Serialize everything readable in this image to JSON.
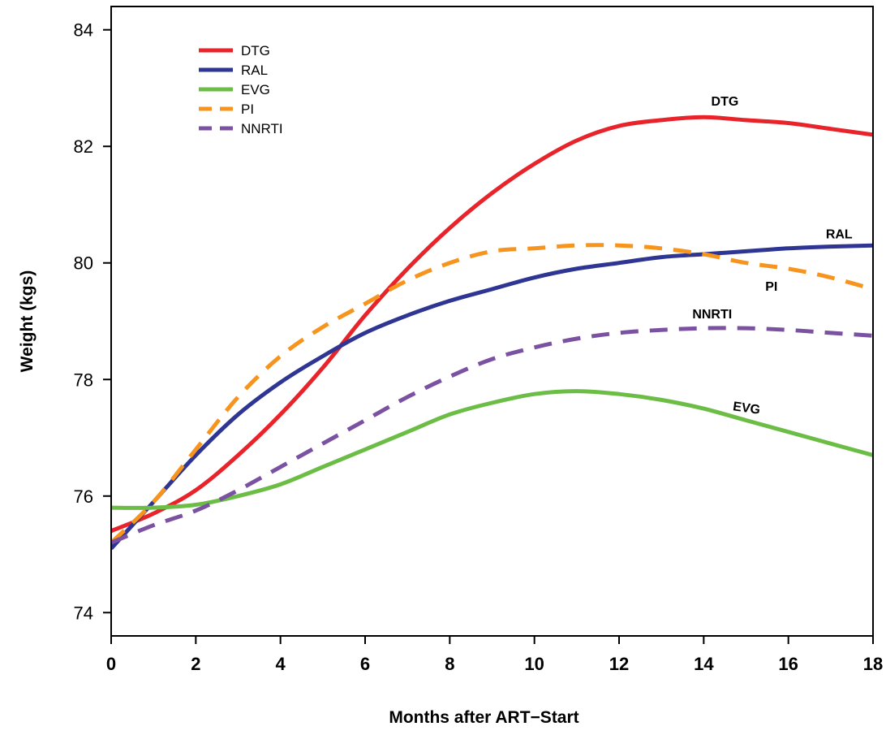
{
  "chart_data": {
    "type": "line",
    "title": "",
    "xlabel": "Months after ART−Start",
    "ylabel": "Weight (kgs)",
    "xlim": [
      0,
      18
    ],
    "ylim": [
      73.6,
      84.4
    ],
    "x_ticks": [
      0,
      2,
      4,
      6,
      8,
      10,
      12,
      14,
      16,
      18
    ],
    "y_ticks": [
      74,
      76,
      78,
      80,
      82,
      84
    ],
    "grid": false,
    "legend_position": "top-left",
    "series": [
      {
        "name": "DTG",
        "color": "#e8232a",
        "dash": "solid",
        "curve_label": "DTG",
        "x": [
          0,
          1,
          2,
          3,
          4,
          5,
          6,
          7,
          8,
          9,
          10,
          11,
          12,
          13,
          14,
          15,
          16,
          17,
          18
        ],
        "y": [
          75.4,
          75.7,
          76.1,
          76.7,
          77.4,
          78.2,
          79.1,
          79.9,
          80.6,
          81.2,
          81.7,
          82.1,
          82.35,
          82.45,
          82.5,
          82.45,
          82.4,
          82.3,
          82.2
        ]
      },
      {
        "name": "RAL",
        "color": "#2e3592",
        "dash": "solid",
        "curve_label": "RAL",
        "x": [
          0,
          1,
          2,
          3,
          4,
          5,
          6,
          7,
          8,
          9,
          10,
          11,
          12,
          13,
          14,
          15,
          16,
          17,
          18
        ],
        "y": [
          75.1,
          75.9,
          76.7,
          77.4,
          77.95,
          78.4,
          78.8,
          79.1,
          79.35,
          79.55,
          79.75,
          79.9,
          80.0,
          80.1,
          80.15,
          80.2,
          80.25,
          80.28,
          80.3
        ]
      },
      {
        "name": "EVG",
        "color": "#6cbd45",
        "dash": "solid",
        "curve_label": "EVG",
        "x": [
          0,
          1,
          2,
          3,
          4,
          5,
          6,
          7,
          8,
          9,
          10,
          11,
          12,
          13,
          14,
          15,
          16,
          17,
          18
        ],
        "y": [
          75.8,
          75.8,
          75.85,
          76.0,
          76.2,
          76.5,
          76.8,
          77.1,
          77.4,
          77.6,
          77.75,
          77.8,
          77.75,
          77.65,
          77.5,
          77.3,
          77.1,
          76.9,
          76.7
        ]
      },
      {
        "name": "PI",
        "color": "#f7941d",
        "dash": "dashed",
        "curve_label": "PI",
        "x": [
          0,
          1,
          2,
          3,
          4,
          5,
          6,
          7,
          8,
          9,
          10,
          11,
          12,
          13,
          14,
          15,
          16,
          17,
          18
        ],
        "y": [
          75.2,
          75.9,
          76.8,
          77.7,
          78.4,
          78.9,
          79.3,
          79.7,
          80.0,
          80.2,
          80.25,
          80.3,
          80.3,
          80.25,
          80.15,
          80.0,
          79.9,
          79.75,
          79.55
        ]
      },
      {
        "name": "NNRTI",
        "color": "#7b52a1",
        "dash": "dashed",
        "curve_label": "NNRTI",
        "x": [
          0,
          1,
          2,
          3,
          4,
          5,
          6,
          7,
          8,
          9,
          10,
          11,
          12,
          13,
          14,
          15,
          16,
          17,
          18
        ],
        "y": [
          75.2,
          75.5,
          75.75,
          76.1,
          76.5,
          76.9,
          77.3,
          77.7,
          78.05,
          78.35,
          78.55,
          78.7,
          78.8,
          78.85,
          78.88,
          78.88,
          78.85,
          78.8,
          78.75
        ]
      }
    ]
  }
}
